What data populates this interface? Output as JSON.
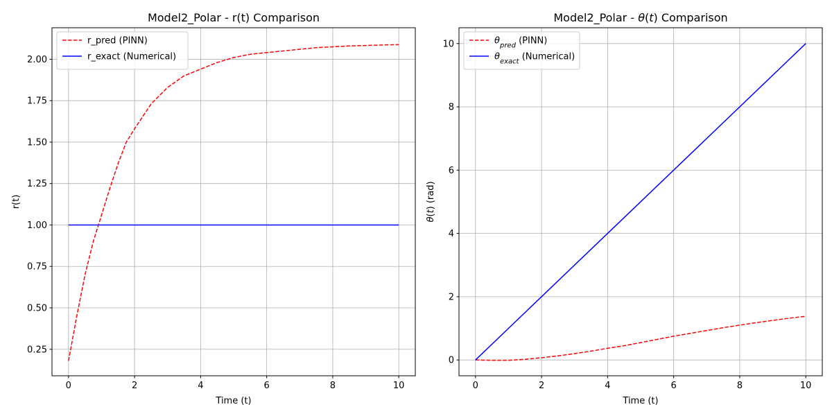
{
  "chart_data": [
    {
      "type": "line",
      "title": "Model2_Polar - r(t) Comparison",
      "xlabel": "Time (t)",
      "ylabel": "r(t)",
      "xlim": [
        -0.5,
        10.5
      ],
      "ylim": [
        0.09,
        2.19
      ],
      "xticks": [
        0,
        2,
        4,
        6,
        8,
        10
      ],
      "xtick_labels": [
        "0",
        "2",
        "4",
        "6",
        "8",
        "10"
      ],
      "yticks": [
        0.25,
        0.5,
        0.75,
        1.0,
        1.25,
        1.5,
        1.75,
        2.0
      ],
      "ytick_labels": [
        "0.25",
        "0.50",
        "0.75",
        "1.00",
        "1.25",
        "1.50",
        "1.75",
        "2.00"
      ],
      "grid": true,
      "legend_position": "top-left",
      "series": [
        {
          "name": "r_pred (PINN)",
          "legend_parts": [
            {
              "text": "r_pred (PINN)",
              "sub": false
            }
          ],
          "color": "#ff0000",
          "dash": "dashed",
          "x": [
            0,
            0.25,
            0.5,
            0.75,
            1,
            1.25,
            1.5,
            1.75,
            2,
            2.5,
            3,
            3.5,
            4,
            4.5,
            5,
            5.5,
            6,
            6.5,
            7,
            7.5,
            8,
            8.5,
            9,
            9.5,
            10
          ],
          "y": [
            0.18,
            0.45,
            0.7,
            0.9,
            1.06,
            1.22,
            1.37,
            1.5,
            1.58,
            1.73,
            1.83,
            1.9,
            1.94,
            1.98,
            2.01,
            2.03,
            2.04,
            2.05,
            2.06,
            2.07,
            2.075,
            2.08,
            2.083,
            2.086,
            2.088
          ]
        },
        {
          "name": "r_exact (Numerical)",
          "legend_parts": [
            {
              "text": "r_exact (Numerical)",
              "sub": false
            }
          ],
          "color": "#0000ff",
          "dash": "solid",
          "x": [
            0,
            10
          ],
          "y": [
            1.0,
            1.0
          ]
        }
      ]
    },
    {
      "type": "line",
      "title": "Model2_Polar - θ(t) Comparison",
      "title_parts": [
        {
          "text": "Model2_Polar - ",
          "italic": false
        },
        {
          "text": "θ",
          "italic": true
        },
        {
          "text": "(",
          "italic": false
        },
        {
          "text": "t",
          "italic": true
        },
        {
          "text": ") Comparison",
          "italic": false
        }
      ],
      "xlabel": "Time (t)",
      "ylabel": "θ(t) (rad)",
      "ylabel_parts": [
        {
          "text": "θ",
          "italic": true
        },
        {
          "text": "(",
          "italic": false
        },
        {
          "text": "t",
          "italic": true
        },
        {
          "text": ") (rad)",
          "italic": false
        }
      ],
      "xlim": [
        -0.5,
        10.5
      ],
      "ylim": [
        -0.5,
        10.5
      ],
      "xticks": [
        0,
        2,
        4,
        6,
        8,
        10
      ],
      "xtick_labels": [
        "0",
        "2",
        "4",
        "6",
        "8",
        "10"
      ],
      "yticks": [
        0,
        2,
        4,
        6,
        8,
        10
      ],
      "ytick_labels": [
        "0",
        "2",
        "4",
        "6",
        "8",
        "10"
      ],
      "grid": true,
      "legend_position": "top-left",
      "series": [
        {
          "name": "θpred (PINN)",
          "legend_parts": [
            {
              "text": "θ",
              "sub": false,
              "italic": true
            },
            {
              "text": "pred",
              "sub": true,
              "italic": true
            },
            {
              "text": " (PINN)",
              "sub": false,
              "italic": false
            }
          ],
          "color": "#ff0000",
          "dash": "dashed",
          "x": [
            0,
            0.5,
            1,
            1.5,
            2,
            2.5,
            3,
            3.5,
            4,
            4.5,
            5,
            5.5,
            6,
            6.5,
            7,
            7.5,
            8,
            8.5,
            9,
            9.5,
            10
          ],
          "y": [
            0.0,
            -0.01,
            -0.01,
            0.02,
            0.07,
            0.13,
            0.2,
            0.28,
            0.37,
            0.45,
            0.55,
            0.65,
            0.75,
            0.84,
            0.93,
            1.02,
            1.1,
            1.18,
            1.25,
            1.32,
            1.38
          ]
        },
        {
          "name": "θexact (Numerical)",
          "legend_parts": [
            {
              "text": "θ",
              "sub": false,
              "italic": true
            },
            {
              "text": "exact",
              "sub": true,
              "italic": true
            },
            {
              "text": " (Numerical)",
              "sub": false,
              "italic": false
            }
          ],
          "color": "#0000ff",
          "dash": "solid",
          "x": [
            0,
            10
          ],
          "y": [
            0,
            10
          ]
        }
      ]
    }
  ]
}
